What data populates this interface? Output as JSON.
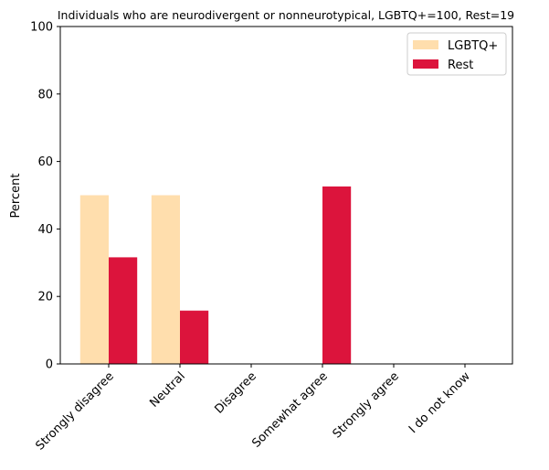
{
  "chart_data": {
    "type": "bar",
    "title": "Individuals who are neurodivergent or nonneurotypical, LGBTQ+=100, Rest=19",
    "xlabel": "",
    "ylabel": "Percent",
    "ylim": [
      0,
      100
    ],
    "yticks": [
      "0",
      "20",
      "40",
      "60",
      "80",
      "100"
    ],
    "categories": [
      "Strongly disagree",
      "Neutral",
      "Disagree",
      "Somewhat agree",
      "Strongly agree",
      "I do not know"
    ],
    "series": [
      {
        "name": "LGBTQ+",
        "color": "#ffdead",
        "values": [
          50,
          50,
          0,
          0,
          0,
          0
        ]
      },
      {
        "name": "Rest",
        "color": "#dc143c",
        "values": [
          31.6,
          15.8,
          0,
          52.6,
          0,
          0
        ]
      }
    ],
    "legend_position": "top-right",
    "grid": false
  }
}
